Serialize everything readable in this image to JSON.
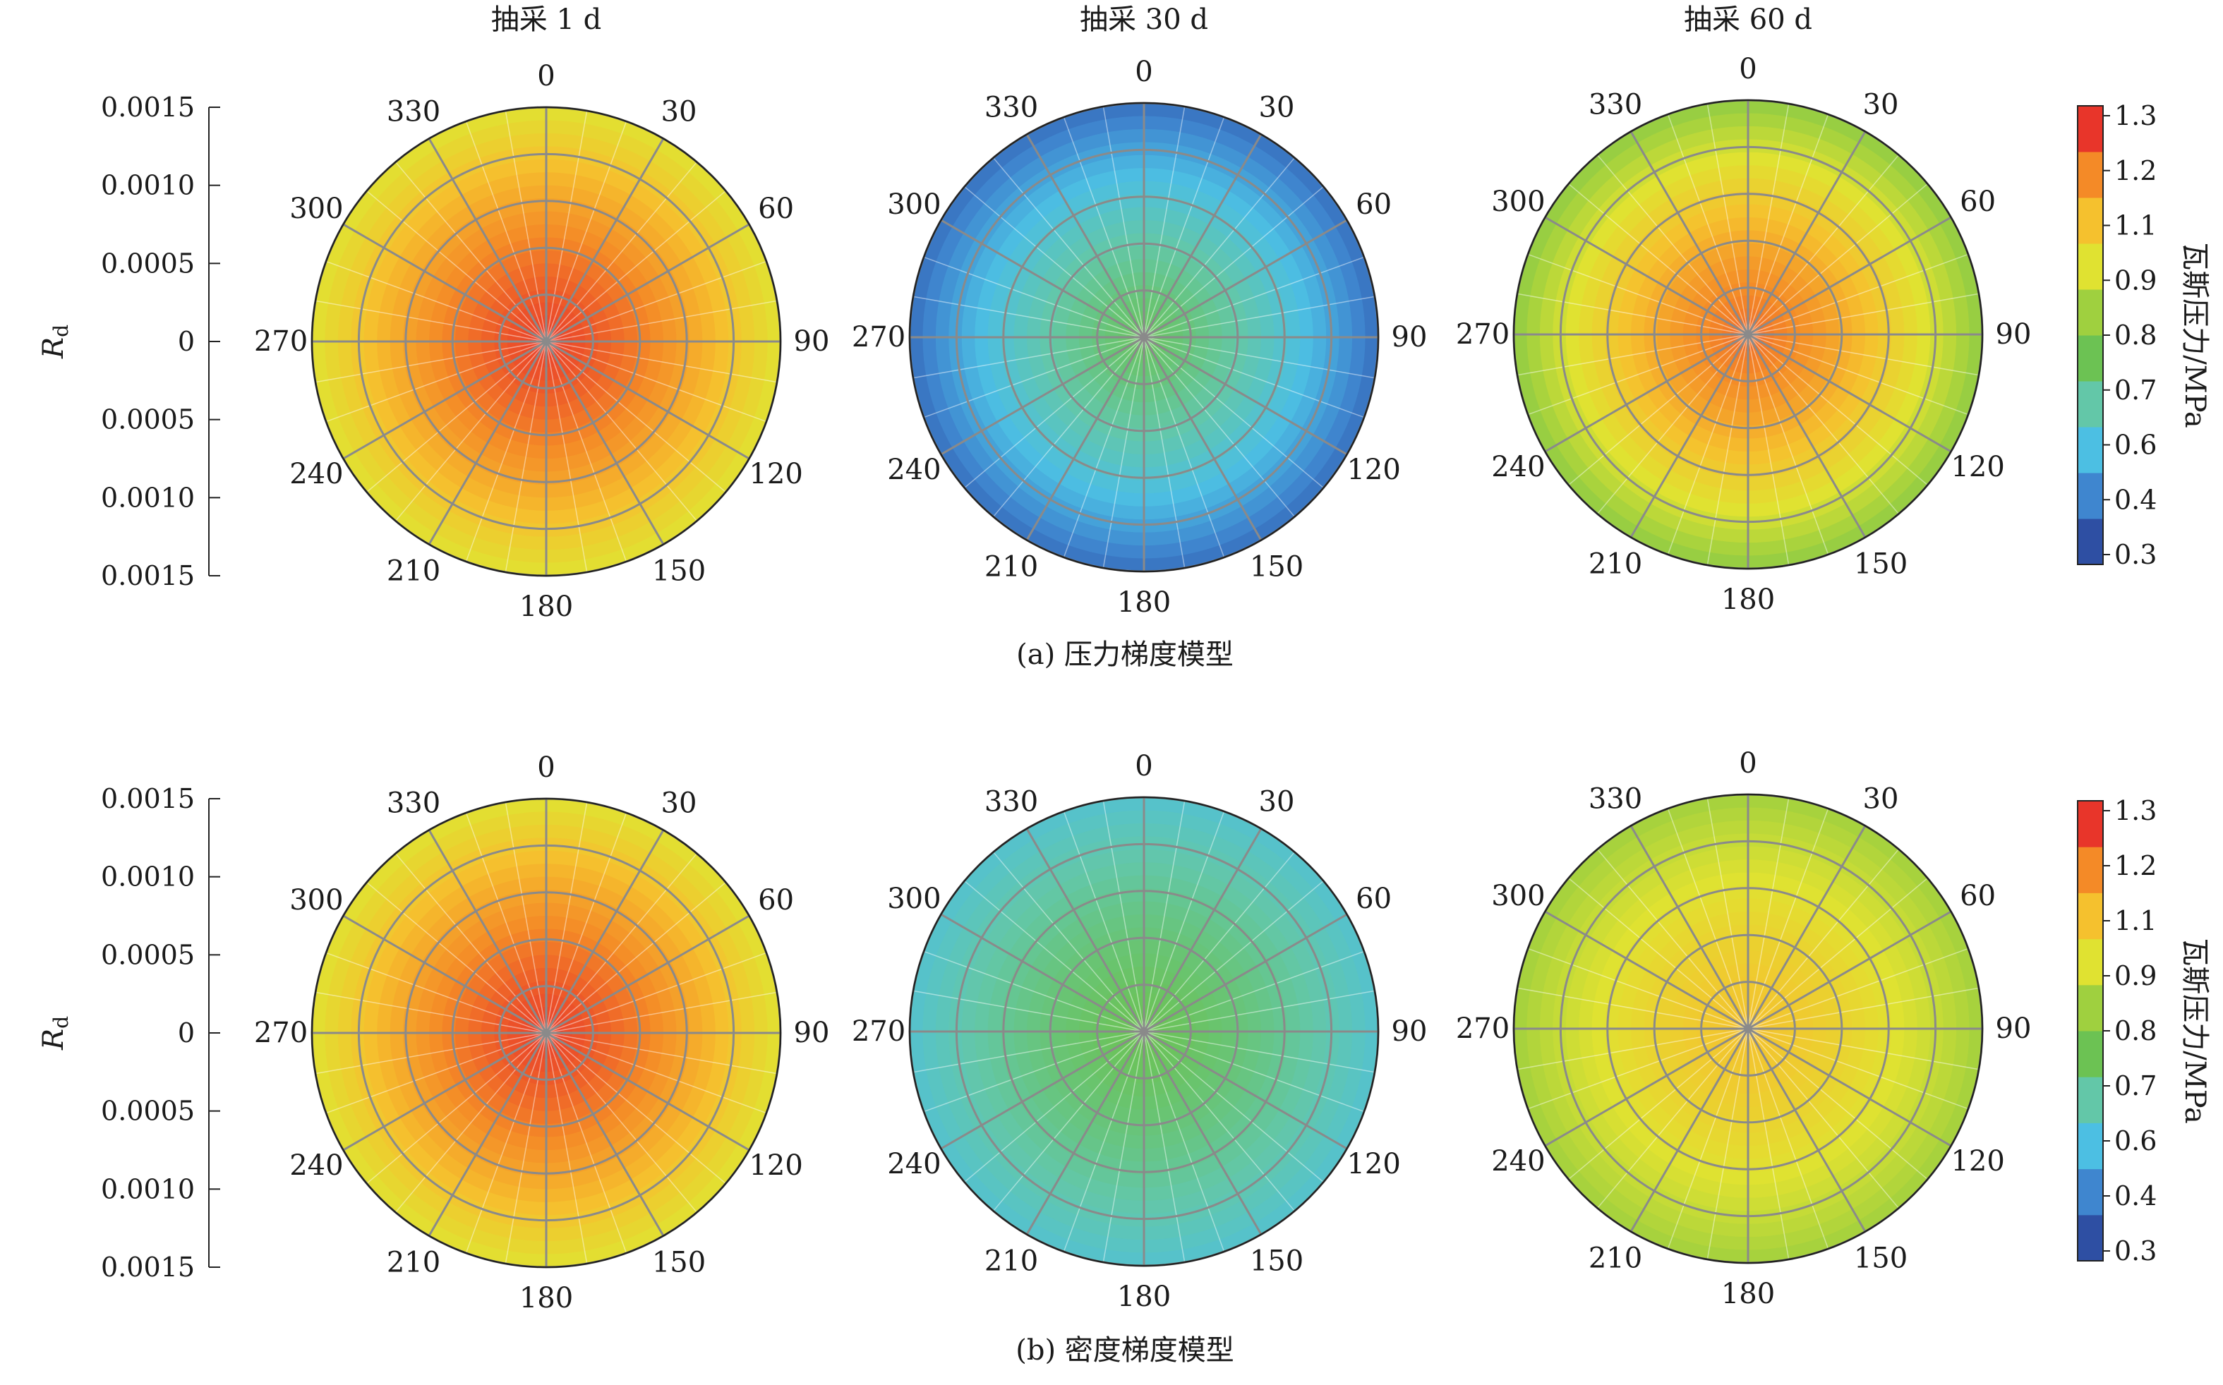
{
  "figure": {
    "column_titles": [
      "抽采 1 d",
      "抽采 30 d",
      "抽采 60 d"
    ],
    "row_captions": [
      "(a) 压力梯度模型",
      "(b) 密度梯度模型"
    ]
  },
  "chart_data": {
    "type": "heatmap",
    "subtype": "polar-contour",
    "angle_ticks": [
      "0",
      "30",
      "60",
      "90",
      "120",
      "150",
      "180",
      "210",
      "240",
      "270",
      "300",
      "330"
    ],
    "radial_axis": {
      "label": "Rd",
      "tick_labels": [
        "0.0015",
        "0.0010",
        "0.0005",
        "0",
        "0.0005",
        "0.0010",
        "0.0015"
      ],
      "range": [
        0,
        0.0015
      ]
    },
    "colorbar": {
      "label": "瓦斯压力/MPa",
      "tick_labels": [
        "1.3",
        "1.2",
        "1.1",
        "0.9",
        "0.8",
        "0.7",
        "0.6",
        "0.4",
        "0.3"
      ],
      "range": [
        0.3,
        1.3
      ],
      "colors": [
        "#2e4fa3",
        "#3f86cf",
        "#4cbfe3",
        "#63c7a8",
        "#6cc253",
        "#9fd03f",
        "#e0e231",
        "#f5c12e",
        "#f48a27",
        "#e8352a"
      ]
    },
    "grid": true,
    "panels": [
      {
        "row": 0,
        "col": 0,
        "rows_label": "压力梯度模型",
        "time_days": 1,
        "pressure_center": 1.28,
        "pressure_edge": 0.98
      },
      {
        "row": 0,
        "col": 1,
        "rows_label": "压力梯度模型",
        "time_days": 30,
        "pressure_center": 0.72,
        "pressure_edge": 0.38
      },
      {
        "row": 0,
        "col": 2,
        "rows_label": "压力梯度模型",
        "time_days": 60,
        "pressure_center": 1.22,
        "pressure_edge": 0.84
      },
      {
        "row": 1,
        "col": 0,
        "rows_label": "密度梯度模型",
        "time_days": 1,
        "pressure_center": 1.28,
        "pressure_edge": 0.98
      },
      {
        "row": 1,
        "col": 1,
        "rows_label": "密度梯度模型",
        "time_days": 30,
        "pressure_center": 0.74,
        "pressure_edge": 0.57
      },
      {
        "row": 1,
        "col": 2,
        "rows_label": "密度梯度模型",
        "time_days": 60,
        "pressure_center": 1.07,
        "pressure_edge": 0.87
      }
    ]
  }
}
